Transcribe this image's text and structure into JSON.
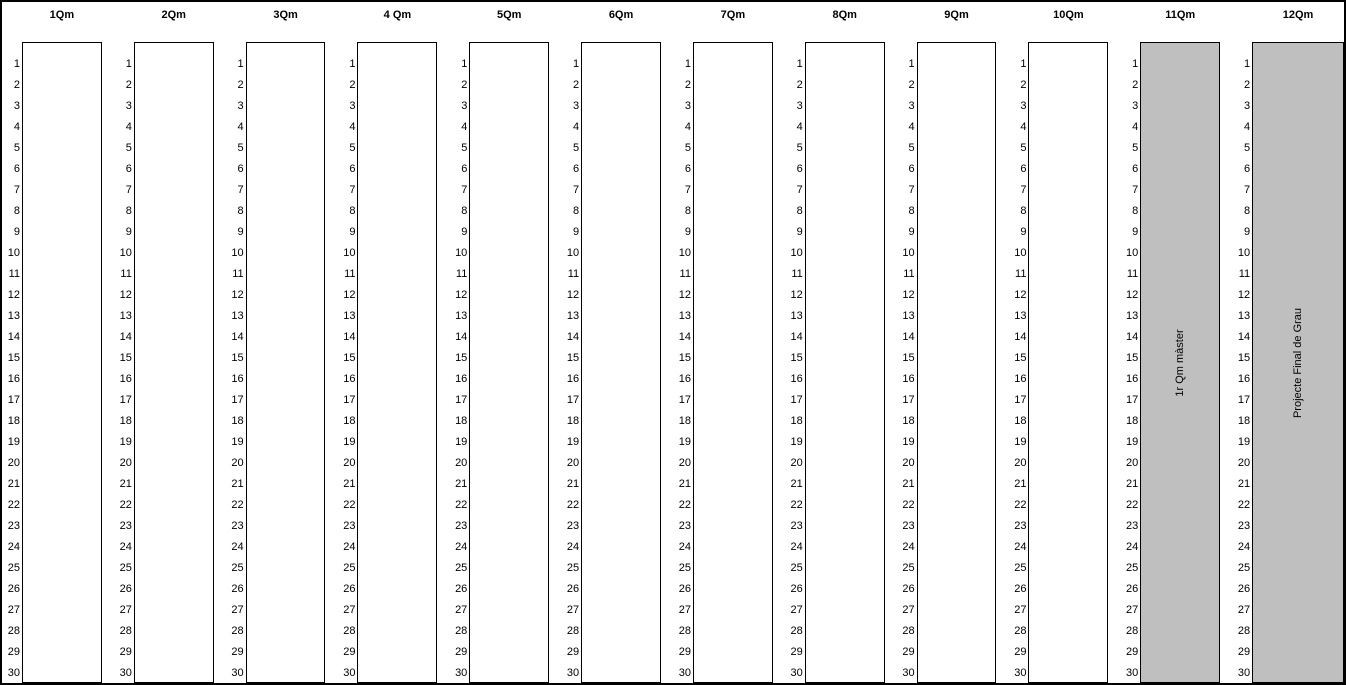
{
  "grid": {
    "columns": [
      {
        "header": "1Qm",
        "filled": false,
        "label": ""
      },
      {
        "header": "2Qm",
        "filled": false,
        "label": ""
      },
      {
        "header": "3Qm",
        "filled": false,
        "label": ""
      },
      {
        "header": "4 Qm",
        "filled": false,
        "label": ""
      },
      {
        "header": "5Qm",
        "filled": false,
        "label": ""
      },
      {
        "header": "6Qm",
        "filled": false,
        "label": ""
      },
      {
        "header": "7Qm",
        "filled": false,
        "label": ""
      },
      {
        "header": "8Qm",
        "filled": false,
        "label": ""
      },
      {
        "header": "9Qm",
        "filled": false,
        "label": ""
      },
      {
        "header": "10Qm",
        "filled": false,
        "label": ""
      },
      {
        "header": "11Qm",
        "filled": true,
        "label": "1r Qm màster"
      },
      {
        "header": "12Qm",
        "filled": true,
        "label": "Projecte Final de Grau"
      }
    ],
    "row_numbers": [
      "1",
      "2",
      "3",
      "4",
      "5",
      "6",
      "7",
      "8",
      "9",
      "10",
      "11",
      "12",
      "13",
      "14",
      "15",
      "16",
      "17",
      "18",
      "19",
      "20",
      "21",
      "22",
      "23",
      "24",
      "25",
      "26",
      "27",
      "28",
      "29",
      "30"
    ]
  },
  "colors": {
    "filled_box_background": "#bfbfbf",
    "empty_box_background": "#ffffff",
    "border": "#000000",
    "text": "#000000"
  }
}
